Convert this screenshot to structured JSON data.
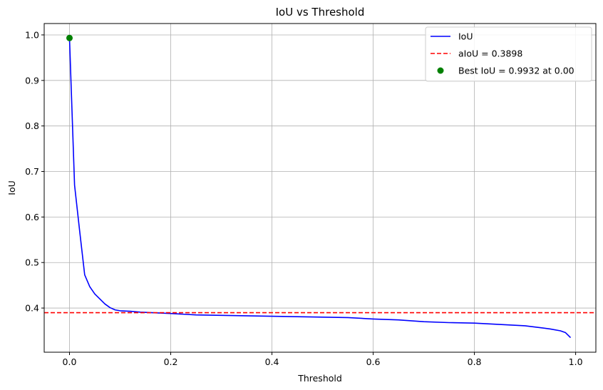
{
  "chart_data": {
    "type": "line",
    "title": "IoU vs Threshold",
    "xlabel": "Threshold",
    "ylabel": "IoU",
    "xlim": [
      -0.05,
      1.04
    ],
    "ylim": [
      0.303,
      1.025
    ],
    "xticks": [
      "0.0",
      "0.2",
      "0.4",
      "0.6",
      "0.8",
      "1.0"
    ],
    "yticks": [
      "0.4",
      "0.5",
      "0.6",
      "0.7",
      "0.8",
      "0.9",
      "1.0"
    ],
    "grid": true,
    "legend_position": "top-right",
    "series": [
      {
        "name": "IoU",
        "kind": "line",
        "color": "#0000ff",
        "x": [
          0.0,
          0.01,
          0.02,
          0.03,
          0.04,
          0.05,
          0.06,
          0.07,
          0.08,
          0.09,
          0.1,
          0.12,
          0.14,
          0.16,
          0.18,
          0.2,
          0.25,
          0.3,
          0.35,
          0.4,
          0.45,
          0.5,
          0.55,
          0.6,
          0.65,
          0.7,
          0.75,
          0.8,
          0.85,
          0.9,
          0.93,
          0.95,
          0.97,
          0.98,
          0.99
        ],
        "y": [
          0.9932,
          0.67,
          0.57,
          0.473,
          0.447,
          0.431,
          0.42,
          0.409,
          0.401,
          0.396,
          0.394,
          0.393,
          0.391,
          0.39,
          0.389,
          0.388,
          0.385,
          0.384,
          0.383,
          0.382,
          0.381,
          0.38,
          0.379,
          0.376,
          0.374,
          0.37,
          0.368,
          0.367,
          0.364,
          0.361,
          0.357,
          0.354,
          0.35,
          0.346,
          0.335
        ]
      },
      {
        "name": "aIoU = 0.3898",
        "kind": "hline",
        "color": "#ff0000",
        "y": 0.3898
      },
      {
        "name": "Best IoU = 0.9932 at 0.00",
        "kind": "point",
        "color": "#008000",
        "x": 0.0,
        "y": 0.9932
      }
    ]
  }
}
